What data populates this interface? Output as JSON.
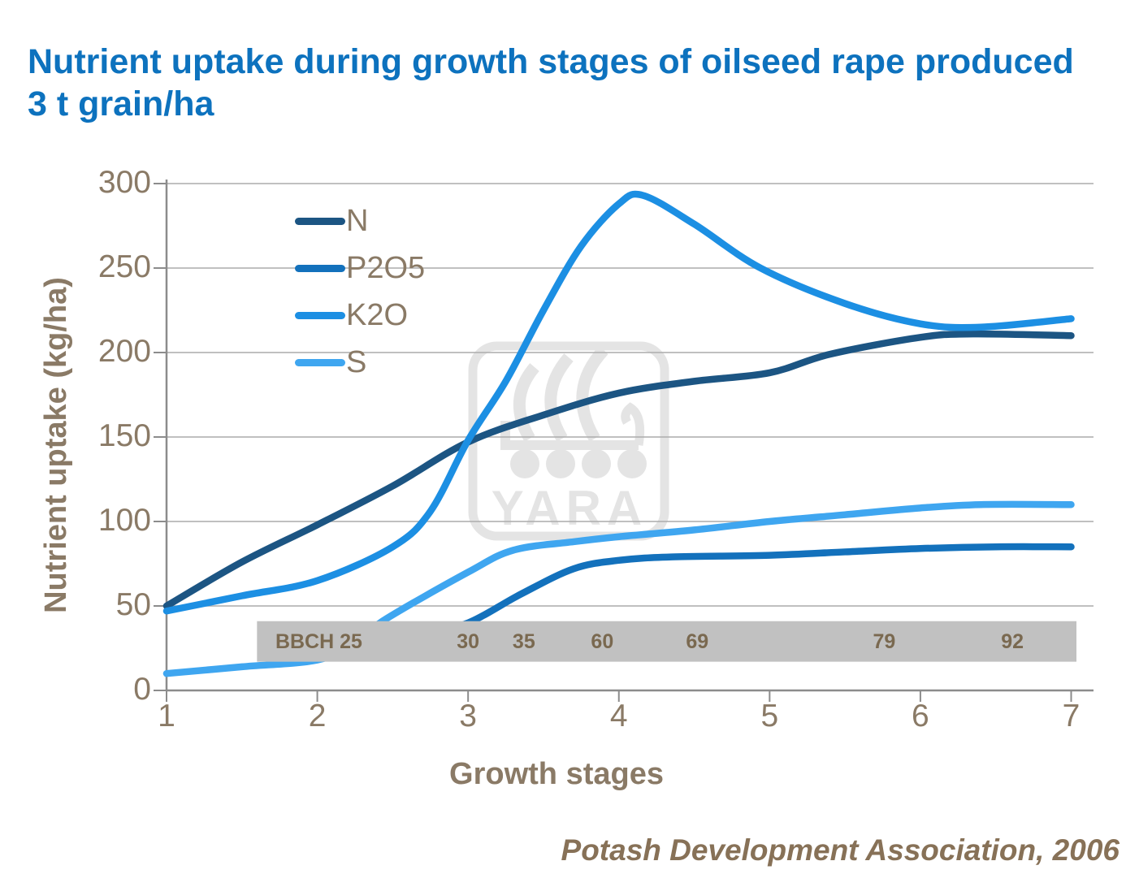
{
  "title": "Nutrient uptake during growth stages of oilseed rape produced 3 t grain/ha",
  "attribution": "Potash Development Association, 2006",
  "watermark": {
    "text": "YARA"
  },
  "colors": {
    "title": "#0D72BE",
    "axis_text": "#8A7A66",
    "gridline": "#ABABAB",
    "axis_line": "#8C8C8C",
    "band": "#C1C1C1",
    "band_text": "#7A6950",
    "watermark": "#E4E4E4",
    "attribution_text": "#877157"
  },
  "chart_data": {
    "type": "line",
    "title": "Nutrient uptake during growth stages of oilseed rape produced 3 t grain/ha",
    "xlabel": "Growth stages",
    "ylabel": "Nutrient uptake (kg/ha)",
    "xlim": [
      1,
      7
    ],
    "ylim": [
      0,
      300
    ],
    "x_ticks": [
      1,
      2,
      3,
      4,
      5,
      6,
      7
    ],
    "y_ticks": [
      0,
      50,
      100,
      150,
      200,
      250,
      300
    ],
    "grid": "horizontal",
    "legend_position": "inside-top-left",
    "series": [
      {
        "name": "N",
        "color": "#1C5583",
        "points": [
          [
            1,
            50
          ],
          [
            1.5,
            76
          ],
          [
            2,
            98
          ],
          [
            2.5,
            121
          ],
          [
            3,
            147
          ],
          [
            3.5,
            163
          ],
          [
            4,
            176
          ],
          [
            4.5,
            183
          ],
          [
            5,
            188
          ],
          [
            5.4,
            199
          ],
          [
            6,
            209
          ],
          [
            6.35,
            211
          ],
          [
            7,
            210
          ]
        ]
      },
      {
        "name": "P2O5",
        "color": "#1371BC",
        "points": [
          [
            1.7,
            20
          ],
          [
            2.2,
            28
          ],
          [
            2.7,
            34
          ],
          [
            3,
            40
          ],
          [
            3.35,
            57
          ],
          [
            3.7,
            72
          ],
          [
            4,
            77
          ],
          [
            4.35,
            79
          ],
          [
            5,
            80
          ],
          [
            5.5,
            82
          ],
          [
            6,
            84
          ],
          [
            6.5,
            85
          ],
          [
            7,
            85
          ]
        ]
      },
      {
        "name": "K2O",
        "color": "#1C8FE3",
        "points": [
          [
            1,
            47
          ],
          [
            1.5,
            56
          ],
          [
            2,
            65
          ],
          [
            2.5,
            85
          ],
          [
            2.75,
            106
          ],
          [
            3,
            148
          ],
          [
            3.25,
            183
          ],
          [
            3.5,
            225
          ],
          [
            3.75,
            263
          ],
          [
            4,
            288
          ],
          [
            4.16,
            293
          ],
          [
            4.5,
            276
          ],
          [
            4.94,
            250
          ],
          [
            5.5,
            229
          ],
          [
            6,
            217
          ],
          [
            6.4,
            215
          ],
          [
            7,
            220
          ]
        ]
      },
      {
        "name": "S",
        "color": "#3FA6F0",
        "points": [
          [
            1,
            10
          ],
          [
            1.5,
            14
          ],
          [
            2,
            18
          ],
          [
            2.25,
            28
          ],
          [
            2.45,
            42
          ],
          [
            3,
            70
          ],
          [
            3.3,
            83
          ],
          [
            3.7,
            88
          ],
          [
            4,
            91
          ],
          [
            4.5,
            95
          ],
          [
            5,
            100
          ],
          [
            5.5,
            104
          ],
          [
            6,
            108
          ],
          [
            6.4,
            110
          ],
          [
            7,
            110
          ]
        ]
      }
    ],
    "bbch_band": {
      "x_range": [
        1.6,
        7.035
      ],
      "y_range": [
        17,
        41
      ],
      "labels": [
        {
          "text": "BBCH 25",
          "stage": 2.01
        },
        {
          "text": "30",
          "stage": 3.0
        },
        {
          "text": "35",
          "stage": 3.37
        },
        {
          "text": "60",
          "stage": 3.89
        },
        {
          "text": "69",
          "stage": 4.52
        },
        {
          "text": "79",
          "stage": 5.76
        },
        {
          "text": "92",
          "stage": 6.61
        }
      ]
    }
  }
}
